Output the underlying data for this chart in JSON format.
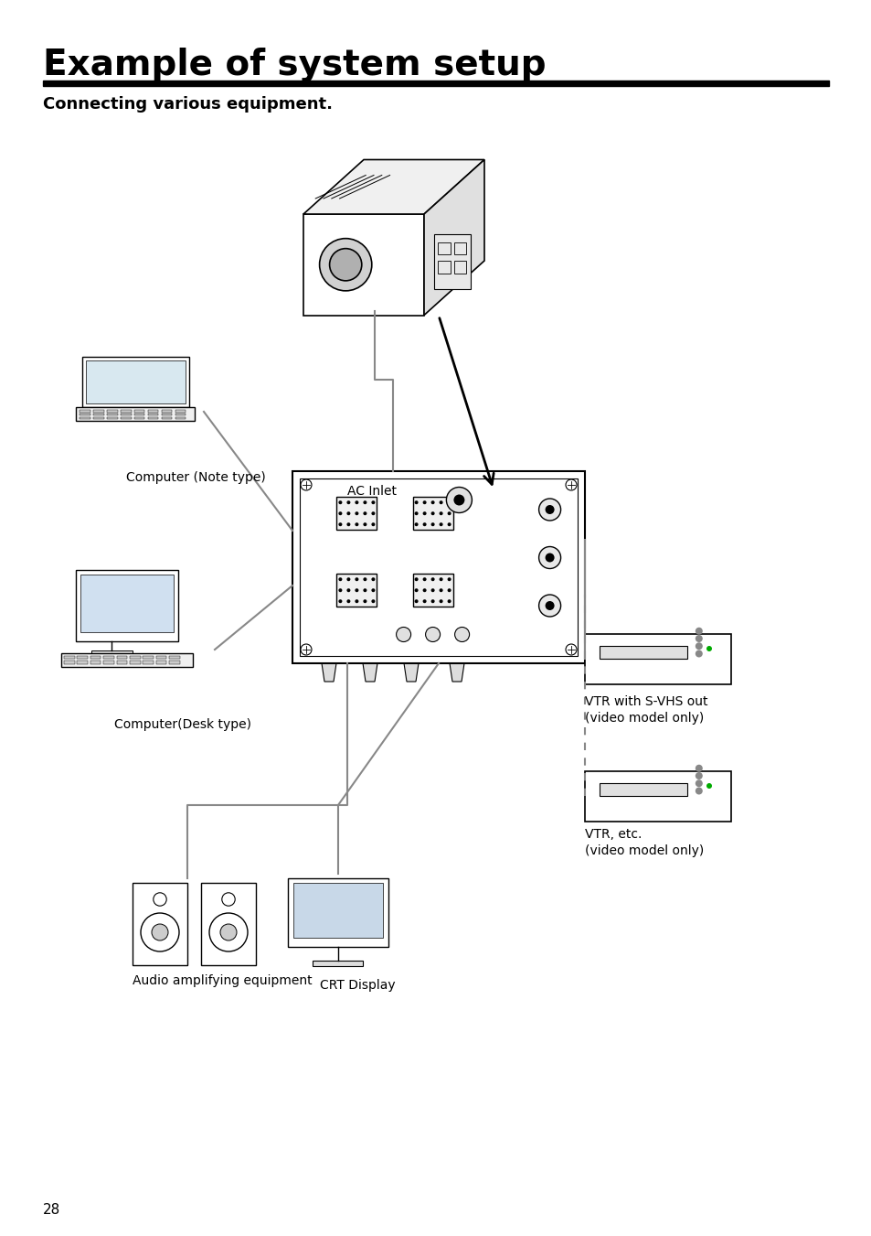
{
  "title": "Example of system setup",
  "subtitle": "Connecting various equipment.",
  "page_number": "28",
  "bg_color": "#ffffff",
  "title_fontsize": 28,
  "subtitle_fontsize": 13,
  "page_num_fontsize": 11,
  "line_color": "#000000",
  "gray_color": "#888888",
  "light_gray": "#aaaaaa",
  "labels": {
    "ac_inlet": "AC Inlet",
    "computer_note": "Computer (Note type)",
    "computer_desk": "Computer(Desk type)",
    "audio": "Audio amplifying equipment",
    "crt": "CRT Display",
    "vtr_svhs": "VTR with S-VHS out\n(video model only)",
    "vtr_etc": "VTR, etc.\n(video model only)"
  }
}
